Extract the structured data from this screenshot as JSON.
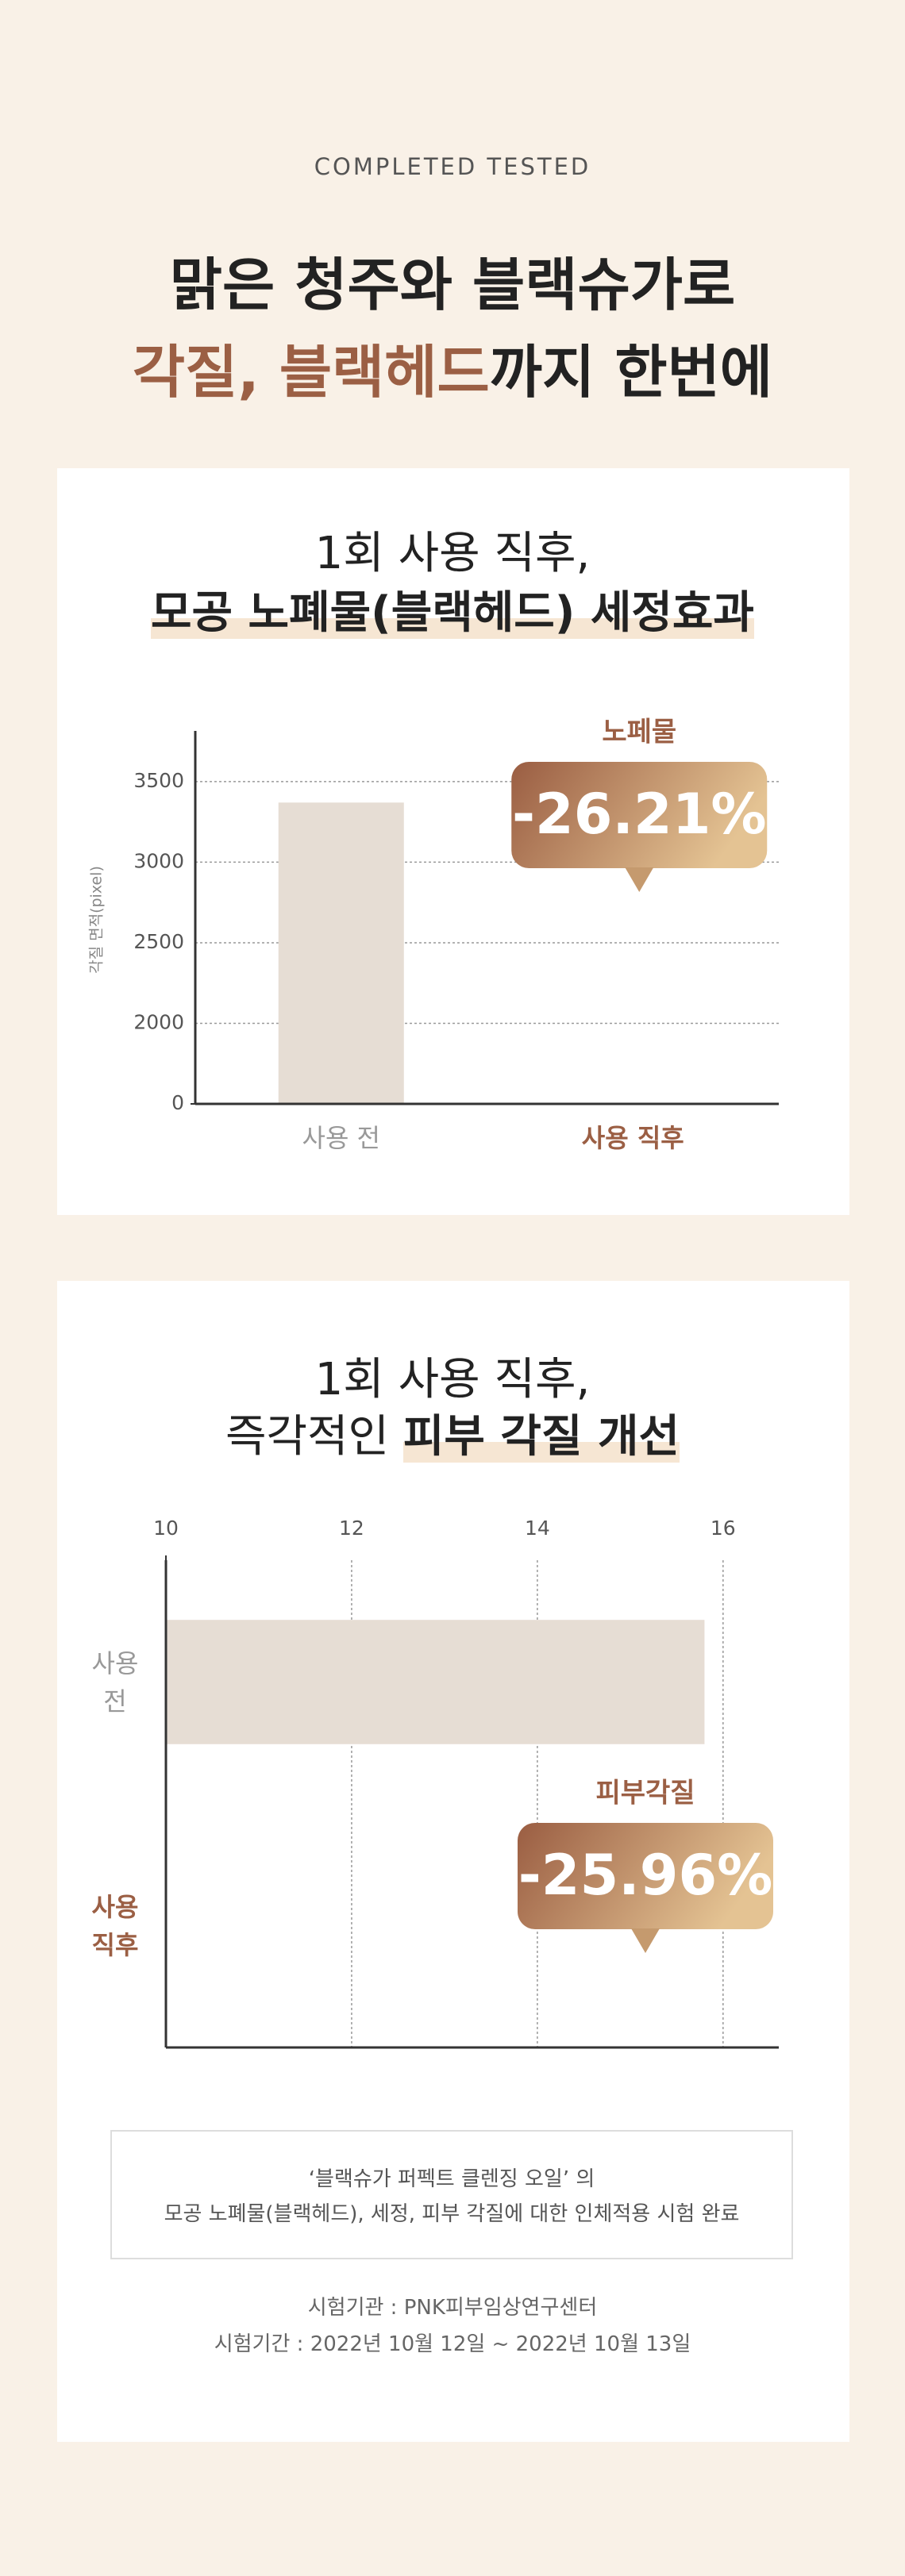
{
  "header": {
    "eyebrow": "COMPLETED TESTED",
    "title_line1": "맑은 청주와 블랙슈가로",
    "title_highlight": "각질, 블랙헤드",
    "title_rest": "까지 한번에"
  },
  "chart_data": [
    {
      "type": "bar",
      "title_line1": "1회 사용 직후,",
      "title_highlight": "모공 노폐물(블랙헤드) 세정효과",
      "y_label": "각질 면적(pixel)",
      "categories": [
        "사용 전",
        "사용 직후"
      ],
      "values": [
        3370,
        null
      ],
      "color": "#e6ddd4",
      "ylim": [
        0,
        3800
      ],
      "yticks": [
        0,
        2000,
        2500,
        3000,
        3500
      ],
      "axis_break": [
        0,
        2000
      ],
      "grid": true,
      "annotation": {
        "label": "노페물",
        "text": "-26.21%"
      }
    },
    {
      "type": "barh",
      "title_line1": "1회 사용 직후,",
      "title_plain": "즉각적인",
      "title_highlight": "피부 각질 개선",
      "categories": [
        "사용 전",
        "사용 직후"
      ],
      "values": [
        15.8,
        null
      ],
      "color": "#e6ddd4",
      "xlim": [
        10,
        16.6
      ],
      "xticks": [
        10,
        12,
        14,
        16
      ],
      "grid": true,
      "annotation": {
        "label": "피부각질",
        "text": "-25.96%"
      }
    }
  ],
  "note": {
    "line1": "‘블랙슈가 퍼펙트 클렌징 오일’ 의",
    "line2": "모공 노폐물(블랙헤드), 세정, 피부 각질에 대한 인체적용 시험 완료"
  },
  "footer": {
    "line1": "시험기관 : PNK피부임상연구센터",
    "line2": "시험기간 : 2022년 10월 12일 ~ 2022년 10월 13일"
  }
}
